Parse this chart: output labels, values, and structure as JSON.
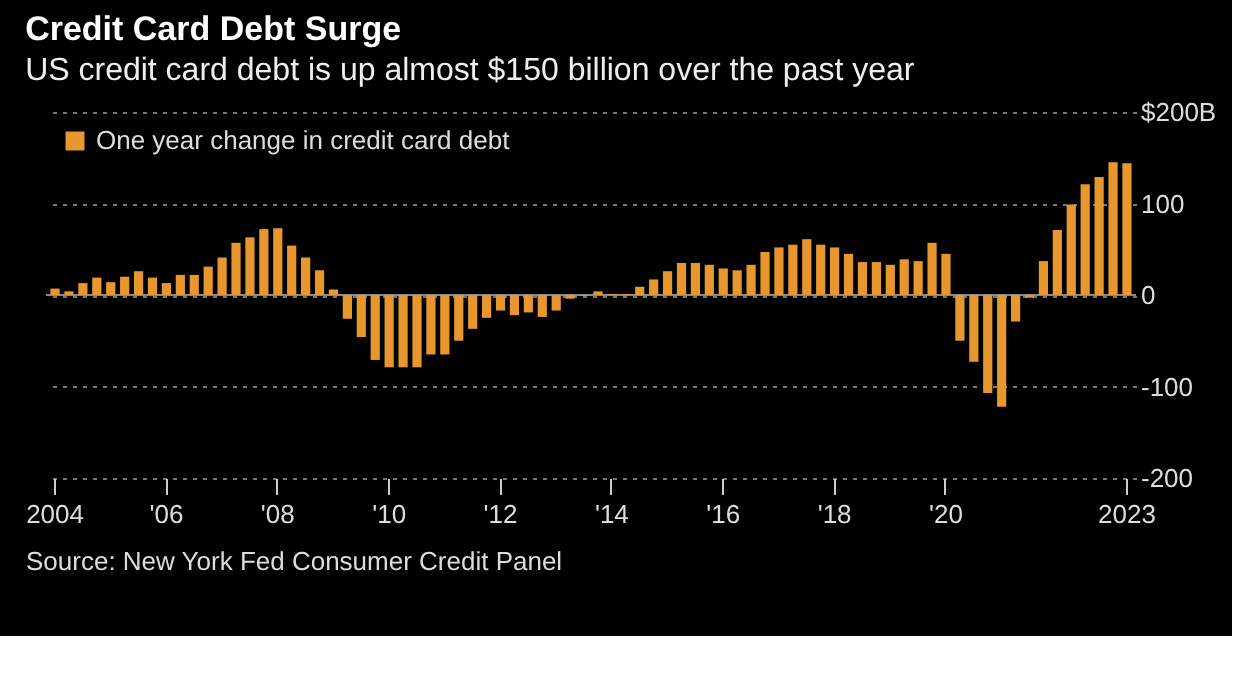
{
  "chart_data": {
    "type": "bar",
    "title": "Credit Card Debt Surge",
    "subtitle": "US credit card debt is up almost $150 billion over the past year",
    "categories": [
      "2004",
      null,
      null,
      null,
      null,
      null,
      null,
      null,
      "'06",
      null,
      null,
      null,
      null,
      null,
      null,
      null,
      "'08",
      null,
      null,
      null,
      null,
      null,
      null,
      null,
      "'10",
      null,
      null,
      null,
      null,
      null,
      null,
      null,
      "'12",
      null,
      null,
      null,
      null,
      null,
      null,
      null,
      "'14",
      null,
      null,
      null,
      null,
      null,
      null,
      null,
      "'16",
      null,
      null,
      null,
      null,
      null,
      null,
      null,
      "'18",
      null,
      null,
      null,
      null,
      null,
      null,
      null,
      "'20",
      null,
      null,
      null,
      null,
      null,
      null,
      null,
      null,
      null,
      null,
      null,
      null,
      "2023"
    ],
    "series": [
      {
        "name": "One year change in credit card debt",
        "color": "#e8962e",
        "values": [
          7,
          4,
          13,
          19,
          14,
          20,
          26,
          19,
          13,
          22,
          22,
          31,
          41,
          57,
          63,
          72,
          73,
          54,
          41,
          27,
          6,
          -26,
          -46,
          -71,
          -79,
          -79,
          -79,
          -65,
          -65,
          -50,
          -37,
          -25,
          -17,
          -22,
          -19,
          -24,
          -17,
          -4,
          -1,
          4,
          1,
          1,
          9,
          17,
          26,
          35,
          35,
          33,
          29,
          27,
          33,
          47,
          52,
          55,
          61,
          55,
          52,
          45,
          36,
          36,
          33,
          39,
          37,
          57,
          45,
          -50,
          -73,
          -107,
          -122,
          -29,
          -3,
          37,
          71,
          99,
          121,
          129,
          145,
          144
        ]
      }
    ],
    "ylim": [
      -200,
      200
    ],
    "yticks": [
      -200,
      -100,
      0,
      100,
      {
        "value": 200,
        "label": "$200B"
      }
    ],
    "grid": "y",
    "legend": "top left",
    "annotations": [
      "Source: New York Fed Consumer Credit Panel"
    ]
  }
}
